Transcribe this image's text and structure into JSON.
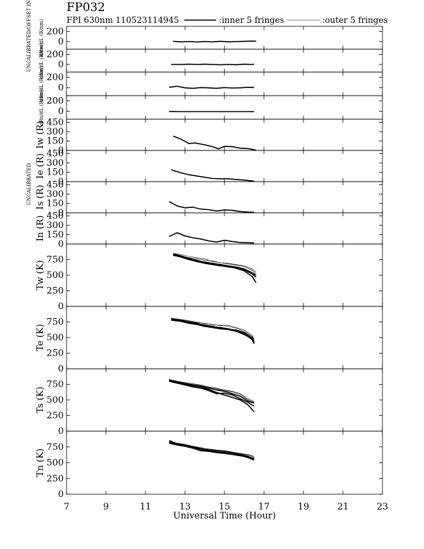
{
  "header": {
    "title": "FP032",
    "subtitle": "FPI 630nm 110523114945",
    "legend_inner": ":inner 5 fringes",
    "legend_outer": ":outer 5 fringes"
  },
  "side_labels": {
    "uncalibrated_offset": "UNCALIBRATED/OFFSET INCLUDED",
    "uncalibrated": "UNCALIBRATED"
  },
  "chart_data": {
    "type": "line",
    "xlabel": "Universal Time (Hour)",
    "xlim": [
      7,
      23
    ],
    "x_ticks": [
      7,
      9,
      11,
      13,
      15,
      17,
      19,
      21,
      23
    ],
    "panels": [
      {
        "ylabel": "dRw/dL (R/nm)",
        "ylim": [
          -150,
          300
        ],
        "yticks": [
          0,
          200
        ],
        "x": [
          12.4,
          12.8,
          13.2,
          13.6,
          14.0,
          14.4,
          14.8,
          15.2,
          15.6,
          16.0,
          16.4,
          16.6
        ],
        "series": [
          {
            "name": "inner",
            "values": [
              5,
              -5,
              0,
              -8,
              0,
              -5,
              5,
              -5,
              0,
              5,
              10,
              8
            ]
          }
        ]
      },
      {
        "ylabel": "dRe/dL (R/nm)",
        "ylim": [
          -150,
          300
        ],
        "yticks": [
          0,
          200
        ],
        "x": [
          12.3,
          12.8,
          13.2,
          13.6,
          14.0,
          14.4,
          14.8,
          15.2,
          15.6,
          16.0,
          16.4,
          16.5
        ],
        "series": [
          {
            "name": "inner",
            "values": [
              0,
              0,
              5,
              0,
              5,
              0,
              -5,
              0,
              -5,
              5,
              0,
              5
            ]
          }
        ]
      },
      {
        "ylabel": "dRs/dL (R/nm)",
        "ylim": [
          -150,
          300
        ],
        "yticks": [
          0,
          200
        ],
        "x": [
          12.2,
          12.6,
          13.0,
          13.4,
          13.8,
          14.2,
          14.6,
          15.0,
          15.4,
          15.8,
          16.2,
          16.5
        ],
        "series": [
          {
            "name": "inner",
            "values": [
              10,
              30,
              0,
              -10,
              5,
              0,
              -10,
              5,
              -5,
              0,
              10,
              5
            ]
          }
        ]
      },
      {
        "ylabel": "dRn/dL (R/nm)",
        "ylim": [
          -150,
          300
        ],
        "yticks": [
          0,
          200
        ],
        "x": [
          12.2,
          12.6,
          13.0,
          13.4,
          13.8,
          14.2,
          14.6,
          15.0,
          15.4,
          15.8,
          16.2,
          16.5
        ],
        "series": [
          {
            "name": "inner",
            "values": [
              0,
              -5,
              -5,
              -5,
              -5,
              -5,
              -5,
              -5,
              -5,
              -5,
              -5,
              -5
            ]
          }
        ]
      },
      {
        "ylabel": "Iw (R)",
        "ylim": [
          0,
          500
        ],
        "yticks": [
          0,
          150,
          300,
          450
        ],
        "x": [
          12.4,
          12.8,
          13.2,
          13.5,
          14.0,
          14.4,
          14.7,
          15.0,
          15.4,
          15.8,
          16.2,
          16.6
        ],
        "series": [
          {
            "name": "inner",
            "values": [
              230,
              180,
              110,
              120,
              90,
              60,
              25,
              65,
              60,
              35,
              30,
              5
            ]
          }
        ]
      },
      {
        "ylabel": "Ie (R)",
        "ylim": [
          0,
          500
        ],
        "yticks": [
          0,
          150,
          300,
          450
        ],
        "x": [
          12.3,
          12.8,
          13.2,
          13.6,
          14.0,
          14.4,
          14.8,
          15.2,
          15.6,
          16.0,
          16.4,
          16.5
        ],
        "series": [
          {
            "name": "inner",
            "values": [
              190,
              140,
              110,
              90,
              70,
              50,
              45,
              45,
              35,
              25,
              10,
              8
            ]
          }
        ]
      },
      {
        "ylabel": "Is (R)",
        "ylim": [
          0,
          500
        ],
        "yticks": [
          0,
          150,
          300,
          450
        ],
        "x": [
          12.2,
          12.6,
          13.0,
          13.4,
          13.8,
          14.2,
          14.6,
          15.0,
          15.4,
          15.8,
          16.2,
          16.5
        ],
        "series": [
          {
            "name": "inner",
            "values": [
              180,
              110,
              80,
              90,
              60,
              50,
              30,
              45,
              40,
              20,
              10,
              8
            ]
          }
        ]
      },
      {
        "ylabel": "In (R)",
        "ylim": [
          0,
          500
        ],
        "yticks": [
          0,
          150,
          300,
          450
        ],
        "x": [
          12.2,
          12.6,
          13.0,
          13.4,
          13.8,
          14.2,
          14.6,
          15.0,
          15.4,
          15.8,
          16.2,
          16.5
        ],
        "series": [
          {
            "name": "inner",
            "values": [
              120,
              180,
              130,
              100,
              80,
              50,
              30,
              60,
              40,
              25,
              20,
              15
            ]
          }
        ]
      },
      {
        "ylabel": "Tw (K)",
        "ylim": [
          0,
          1000
        ],
        "yticks": [
          0,
          250,
          500,
          750
        ],
        "x": [
          12.4,
          12.8,
          13.2,
          13.6,
          14.0,
          14.4,
          14.8,
          15.2,
          15.6,
          16.0,
          16.4,
          16.6
        ],
        "series": [
          {
            "name": "inner",
            "values": [
              830,
              800,
              760,
              740,
              700,
              680,
              660,
              630,
              620,
              590,
              520,
              470
            ]
          },
          {
            "name": "inner",
            "values": [
              820,
              790,
              750,
              720,
              690,
              670,
              650,
              640,
              610,
              570,
              480,
              380
            ]
          },
          {
            "name": "inner",
            "values": [
              840,
              810,
              770,
              730,
              710,
              690,
              670,
              650,
              630,
              600,
              540,
              500
            ]
          },
          {
            "name": "outer",
            "values": [
              850,
              830,
              800,
              780,
              760,
              720,
              700,
              680,
              660,
              640,
              580,
              520
            ]
          },
          {
            "name": "outer",
            "values": [
              830,
              800,
              780,
              760,
              740,
              730,
              700,
              690,
              670,
              650,
              600,
              550
            ]
          }
        ]
      },
      {
        "ylabel": "Te (K)",
        "ylim": [
          0,
          1000
        ],
        "yticks": [
          0,
          250,
          500,
          750
        ],
        "x": [
          12.3,
          12.8,
          13.2,
          13.6,
          14.0,
          14.4,
          14.8,
          15.2,
          15.6,
          16.0,
          16.4,
          16.5
        ],
        "series": [
          {
            "name": "inner",
            "values": [
              790,
              770,
              740,
              720,
              700,
              680,
              650,
              630,
              620,
              580,
              500,
              420
            ]
          },
          {
            "name": "inner",
            "values": [
              800,
              780,
              750,
              730,
              690,
              670,
              660,
              640,
              610,
              560,
              470,
              400
            ]
          },
          {
            "name": "inner",
            "values": [
              780,
              760,
              730,
              710,
              680,
              660,
              640,
              630,
              600,
              550,
              480,
              440
            ]
          },
          {
            "name": "outer",
            "values": [
              810,
              790,
              770,
              750,
              720,
              710,
              690,
              700,
              660,
              620,
              540,
              480
            ]
          },
          {
            "name": "outer",
            "values": [
              800,
              780,
              760,
              740,
              730,
              700,
              700,
              680,
              650,
              600,
              520,
              460
            ]
          }
        ]
      },
      {
        "ylabel": "Ts (K)",
        "ylim": [
          0,
          1000
        ],
        "yticks": [
          0,
          250,
          500,
          750
        ],
        "x": [
          12.2,
          12.6,
          13.0,
          13.4,
          13.8,
          14.2,
          14.6,
          15.0,
          15.4,
          15.8,
          16.2,
          16.5
        ],
        "series": [
          {
            "name": "inner",
            "values": [
              820,
              790,
              760,
              740,
              720,
              690,
              660,
              640,
              600,
              560,
              480,
              450
            ]
          },
          {
            "name": "inner",
            "values": [
              810,
              780,
              750,
              720,
              700,
              670,
              620,
              580,
              540,
              500,
              420,
              310
            ]
          },
          {
            "name": "inner",
            "values": [
              800,
              770,
              740,
              710,
              690,
              650,
              600,
              610,
              580,
              520,
              460,
              400
            ]
          },
          {
            "name": "outer",
            "values": [
              830,
              800,
              780,
              760,
              740,
              710,
              690,
              660,
              640,
              600,
              520,
              470
            ]
          },
          {
            "name": "outer",
            "values": [
              820,
              800,
              770,
              750,
              730,
              700,
              680,
              650,
              630,
              590,
              500,
              460
            ]
          }
        ]
      },
      {
        "ylabel": "Tn (K)",
        "ylim": [
          0,
          1000
        ],
        "yticks": [
          0,
          250,
          500,
          750
        ],
        "x": [
          12.2,
          12.6,
          13.0,
          13.4,
          13.8,
          14.2,
          14.6,
          15.0,
          15.4,
          15.8,
          16.2,
          16.5
        ],
        "series": [
          {
            "name": "inner",
            "values": [
              850,
              800,
              780,
              750,
              720,
              700,
              690,
              680,
              660,
              630,
              600,
              560
            ]
          },
          {
            "name": "inner",
            "values": [
              820,
              790,
              770,
              740,
              700,
              690,
              670,
              660,
              640,
              620,
              580,
              540
            ]
          },
          {
            "name": "inner",
            "values": [
              810,
              780,
              760,
              730,
              690,
              680,
              660,
              650,
              630,
              610,
              590,
              570
            ]
          },
          {
            "name": "outer",
            "values": [
              840,
              810,
              790,
              760,
              740,
              710,
              700,
              690,
              670,
              650,
              630,
              600
            ]
          },
          {
            "name": "outer",
            "values": [
              830,
              800,
              780,
              760,
              730,
              720,
              700,
              680,
              660,
              640,
              620,
              590
            ]
          }
        ]
      }
    ]
  }
}
